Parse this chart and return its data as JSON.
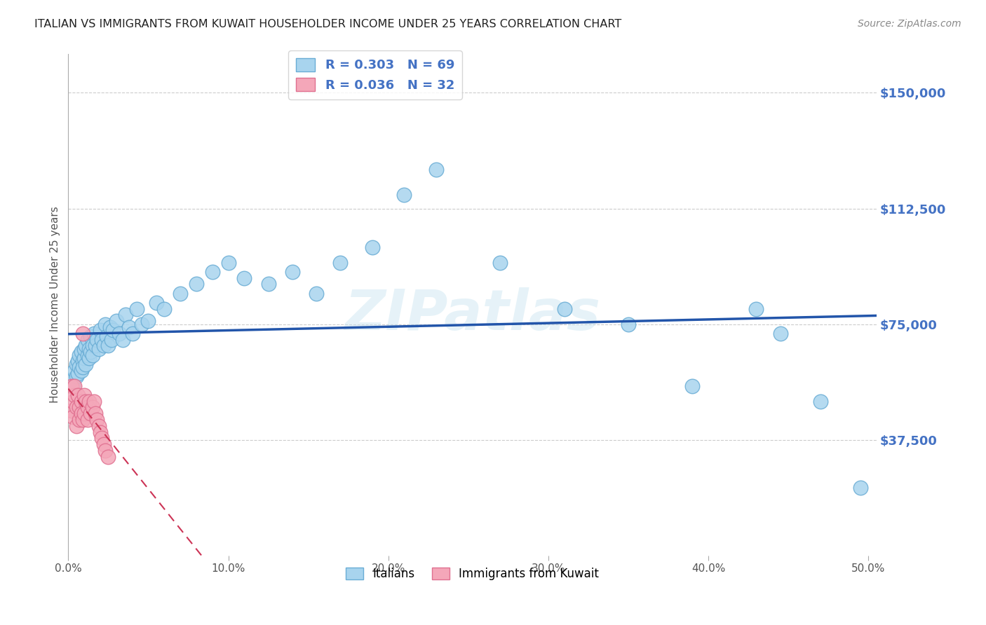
{
  "title": "ITALIAN VS IMMIGRANTS FROM KUWAIT HOUSEHOLDER INCOME UNDER 25 YEARS CORRELATION CHART",
  "source": "Source: ZipAtlas.com",
  "ylabel": "Householder Income Under 25 years",
  "ytick_labels": [
    "$37,500",
    "$75,000",
    "$112,500",
    "$150,000"
  ],
  "ytick_values": [
    37500,
    75000,
    112500,
    150000
  ],
  "ylim": [
    0,
    162500
  ],
  "xlim": [
    0.0,
    0.505
  ],
  "italian_R": "0.303",
  "italian_N": "69",
  "kuwait_R": "0.036",
  "kuwait_N": "32",
  "italian_color": "#A8D4EE",
  "italian_edge": "#6AADD5",
  "kuwait_color": "#F4A7B9",
  "kuwait_edge": "#E07090",
  "trendline_italian_color": "#2255AA",
  "trendline_kuwait_color": "#CC3355",
  "background_color": "#FFFFFF",
  "grid_color": "#CCCCCC",
  "title_color": "#222222",
  "axis_label_color": "#4472C4",
  "watermark": "ZIPatlas",
  "legend_R_color": "#4472C4",
  "legend_N_color": "#4472C4",
  "source_color": "#888888",
  "italian_x": [
    0.002,
    0.003,
    0.004,
    0.005,
    0.005,
    0.006,
    0.006,
    0.007,
    0.007,
    0.008,
    0.008,
    0.009,
    0.009,
    0.01,
    0.01,
    0.011,
    0.011,
    0.012,
    0.012,
    0.013,
    0.013,
    0.014,
    0.014,
    0.015,
    0.015,
    0.016,
    0.017,
    0.018,
    0.019,
    0.02,
    0.021,
    0.022,
    0.023,
    0.024,
    0.025,
    0.026,
    0.027,
    0.028,
    0.03,
    0.032,
    0.034,
    0.036,
    0.038,
    0.04,
    0.043,
    0.046,
    0.05,
    0.055,
    0.06,
    0.07,
    0.08,
    0.09,
    0.1,
    0.11,
    0.125,
    0.14,
    0.155,
    0.17,
    0.19,
    0.21,
    0.23,
    0.27,
    0.31,
    0.35,
    0.39,
    0.43,
    0.445,
    0.47,
    0.495
  ],
  "italian_y": [
    57000,
    55000,
    60000,
    62000,
    58000,
    63000,
    59000,
    65000,
    61000,
    60000,
    66000,
    63000,
    61000,
    64000,
    67000,
    62000,
    68000,
    65000,
    70000,
    67000,
    64000,
    66000,
    71000,
    68000,
    65000,
    72000,
    68000,
    70000,
    67000,
    73000,
    70000,
    68000,
    75000,
    71000,
    68000,
    74000,
    70000,
    73000,
    76000,
    72000,
    70000,
    78000,
    74000,
    72000,
    80000,
    75000,
    76000,
    82000,
    80000,
    85000,
    88000,
    92000,
    95000,
    90000,
    88000,
    92000,
    85000,
    95000,
    100000,
    117000,
    125000,
    95000,
    80000,
    75000,
    55000,
    80000,
    72000,
    50000,
    22000
  ],
  "kuwait_x": [
    0.002,
    0.002,
    0.003,
    0.003,
    0.004,
    0.004,
    0.005,
    0.005,
    0.006,
    0.007,
    0.007,
    0.008,
    0.008,
    0.009,
    0.009,
    0.01,
    0.01,
    0.011,
    0.012,
    0.012,
    0.013,
    0.014,
    0.015,
    0.016,
    0.017,
    0.018,
    0.019,
    0.02,
    0.021,
    0.022,
    0.023,
    0.025
  ],
  "kuwait_y": [
    55000,
    47000,
    50000,
    45000,
    52000,
    55000,
    48000,
    42000,
    52000,
    48000,
    44000,
    50000,
    46000,
    72000,
    44000,
    52000,
    46000,
    50000,
    48000,
    44000,
    50000,
    46000,
    48000,
    50000,
    46000,
    44000,
    42000,
    40000,
    38000,
    36000,
    34000,
    32000
  ]
}
